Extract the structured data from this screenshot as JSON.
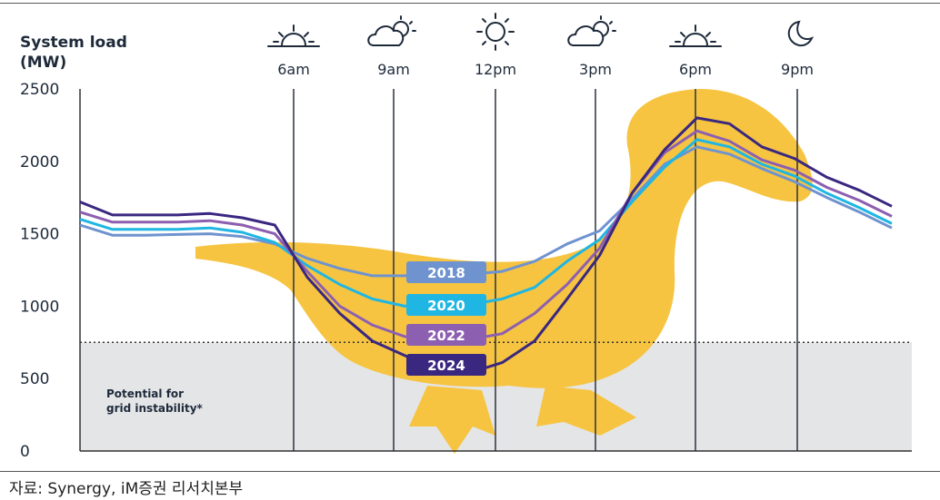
{
  "chart_data": {
    "type": "line",
    "ylabel_lines": [
      "System load",
      "(MW)"
    ],
    "ylim": [
      0,
      2500
    ],
    "yticks": [
      0,
      500,
      1000,
      1500,
      2000,
      2500
    ],
    "time_markers": [
      {
        "label": "6am",
        "icon": "sunrise-icon"
      },
      {
        "label": "9am",
        "icon": "partly-cloudy-icon"
      },
      {
        "label": "12pm",
        "icon": "sun-icon"
      },
      {
        "label": "3pm",
        "icon": "partly-cloudy-icon"
      },
      {
        "label": "6pm",
        "icon": "sunset-icon"
      },
      {
        "label": "9pm",
        "icon": "moon-icon"
      }
    ],
    "instability_threshold": 750,
    "instability_label_lines": [
      "Potential for",
      "grid instability*"
    ],
    "series": [
      {
        "name": "2018",
        "color": "#6f93cf",
        "points": [
          [
            0,
            1560
          ],
          [
            1,
            1490
          ],
          [
            2,
            1490
          ],
          [
            3,
            1495
          ],
          [
            4,
            1500
          ],
          [
            5,
            1480
          ],
          [
            6,
            1430
          ],
          [
            7,
            1330
          ],
          [
            8,
            1260
          ],
          [
            9,
            1210
          ],
          [
            10,
            1210
          ],
          [
            11,
            1220
          ],
          [
            12,
            1220
          ],
          [
            13,
            1240
          ],
          [
            14,
            1310
          ],
          [
            15,
            1430
          ],
          [
            16,
            1520
          ],
          [
            17,
            1740
          ],
          [
            18,
            1980
          ],
          [
            19,
            2100
          ],
          [
            20,
            2050
          ],
          [
            21,
            1950
          ],
          [
            22,
            1860
          ],
          [
            23,
            1750
          ],
          [
            24,
            1650
          ],
          [
            25,
            1540
          ]
        ]
      },
      {
        "name": "2020",
        "color": "#1fb6e3",
        "points": [
          [
            0,
            1600
          ],
          [
            1,
            1530
          ],
          [
            2,
            1530
          ],
          [
            3,
            1530
          ],
          [
            4,
            1540
          ],
          [
            5,
            1510
          ],
          [
            6,
            1440
          ],
          [
            7,
            1280
          ],
          [
            8,
            1150
          ],
          [
            9,
            1050
          ],
          [
            10,
            1000
          ],
          [
            11,
            1010
          ],
          [
            12,
            1010
          ],
          [
            13,
            1050
          ],
          [
            14,
            1130
          ],
          [
            15,
            1310
          ],
          [
            16,
            1460
          ],
          [
            17,
            1720
          ],
          [
            18,
            1960
          ],
          [
            19,
            2150
          ],
          [
            20,
            2100
          ],
          [
            21,
            1980
          ],
          [
            22,
            1900
          ],
          [
            23,
            1780
          ],
          [
            24,
            1680
          ],
          [
            25,
            1570
          ]
        ]
      },
      {
        "name": "2022",
        "color": "#8d5fb0",
        "points": [
          [
            0,
            1650
          ],
          [
            1,
            1580
          ],
          [
            2,
            1580
          ],
          [
            3,
            1580
          ],
          [
            4,
            1590
          ],
          [
            5,
            1560
          ],
          [
            6,
            1500
          ],
          [
            7,
            1240
          ],
          [
            8,
            1000
          ],
          [
            9,
            870
          ],
          [
            10,
            790
          ],
          [
            11,
            770
          ],
          [
            12,
            770
          ],
          [
            13,
            810
          ],
          [
            14,
            950
          ],
          [
            15,
            1150
          ],
          [
            16,
            1400
          ],
          [
            17,
            1780
          ],
          [
            18,
            2060
          ],
          [
            19,
            2210
          ],
          [
            20,
            2140
          ],
          [
            21,
            2010
          ],
          [
            22,
            1940
          ],
          [
            23,
            1820
          ],
          [
            24,
            1730
          ],
          [
            25,
            1620
          ]
        ]
      },
      {
        "name": "2024",
        "color": "#3a2780",
        "points": [
          [
            0,
            1720
          ],
          [
            1,
            1630
          ],
          [
            2,
            1630
          ],
          [
            3,
            1630
          ],
          [
            4,
            1640
          ],
          [
            5,
            1610
          ],
          [
            6,
            1560
          ],
          [
            7,
            1200
          ],
          [
            8,
            950
          ],
          [
            9,
            760
          ],
          [
            10,
            660
          ],
          [
            11,
            560
          ],
          [
            12,
            540
          ],
          [
            13,
            610
          ],
          [
            14,
            760
          ],
          [
            15,
            1050
          ],
          [
            16,
            1350
          ],
          [
            17,
            1780
          ],
          [
            18,
            2080
          ],
          [
            19,
            2300
          ],
          [
            20,
            2260
          ],
          [
            21,
            2100
          ],
          [
            22,
            2020
          ],
          [
            23,
            1890
          ],
          [
            24,
            1800
          ],
          [
            25,
            1690
          ]
        ]
      }
    ],
    "legend_placement": "inline-labels"
  },
  "footer": {
    "source": "자료: Synergy, iM증권 리서치본부"
  }
}
